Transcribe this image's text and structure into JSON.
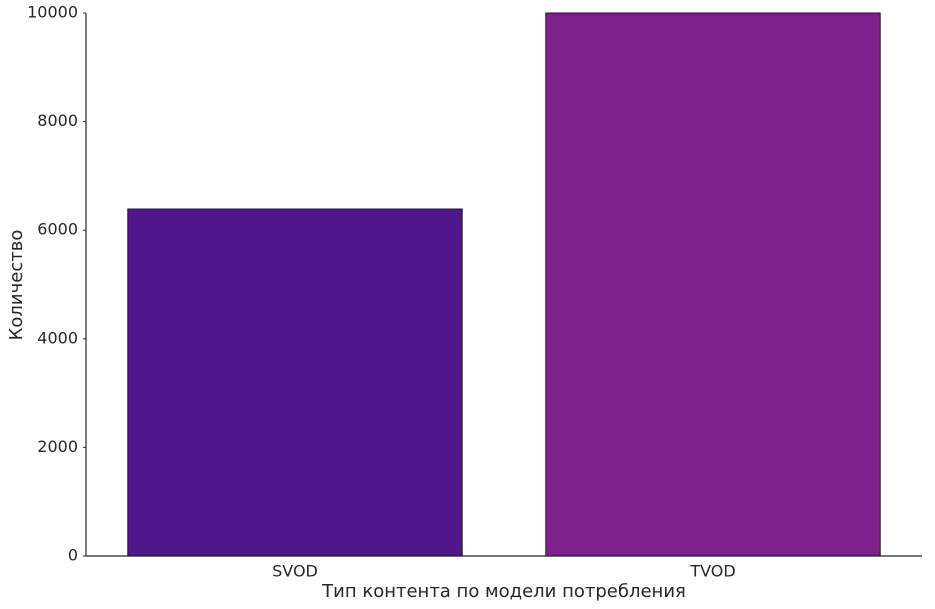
{
  "chart_data": {
    "type": "bar",
    "x_label": "Тип контента по модели потребления",
    "y_label": "Количество",
    "categories": [
      "SVOD",
      "TVOD"
    ],
    "values": [
      6390,
      10000
    ],
    "colors": [
      "#52168c",
      "#7e1f8e"
    ],
    "ylim": [
      0,
      10000
    ],
    "yticks": [
      0,
      2000,
      4000,
      6000,
      8000,
      10000
    ],
    "grid": false
  }
}
